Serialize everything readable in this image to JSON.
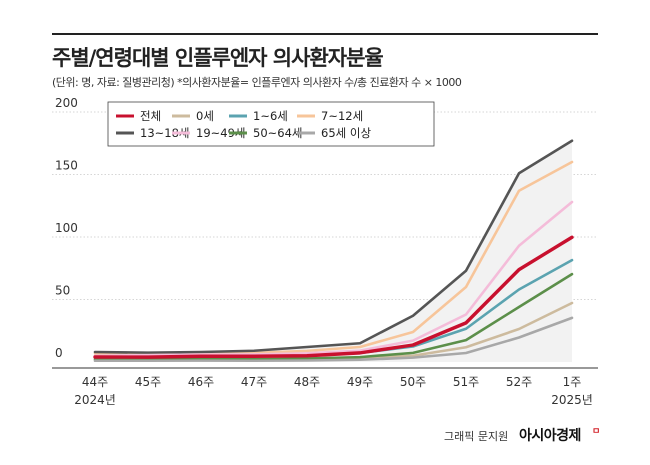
{
  "header": {
    "title": "주별/연령대별 인플루엔자 의사환자분율",
    "subtitle": "(단위: 명, 자료: 질병관리청)  *의사환자분율= 인플루엔자 의사환자 수/총 진료환자 수 × 1000"
  },
  "footer": {
    "credit": "그래픽 문지원",
    "brand": "아시아경제",
    "brand_mark": "ㅁ"
  },
  "chart_data": {
    "type": "line",
    "categories": [
      "44주",
      "45주",
      "46주",
      "47주",
      "48주",
      "49주",
      "50주",
      "51주",
      "52주",
      "1주"
    ],
    "category_sublabels": [
      "2024년",
      "",
      "",
      "",
      "",
      "",
      "",
      "",
      "",
      "2025년"
    ],
    "ylim": [
      0,
      200
    ],
    "yticks": [
      0,
      50,
      100,
      150,
      200
    ],
    "grid": true,
    "legend_placement": "top-left",
    "series": [
      {
        "name": "전체",
        "color": "#c8102e",
        "values": [
          4.0,
          3.9,
          4.6,
          4.6,
          5.0,
          7.3,
          13.6,
          31.3,
          73.9,
          99.8
        ]
      },
      {
        "name": "0세",
        "color": "#cdbb9e",
        "values": [
          3.0,
          2.5,
          3.0,
          2.6,
          3.0,
          3.2,
          5.0,
          11.8,
          26.4,
          47.2
        ]
      },
      {
        "name": "1~6세",
        "color": "#5ba3b0",
        "values": [
          4.5,
          4.1,
          5.0,
          4.9,
          5.6,
          7.2,
          12.4,
          26.6,
          58.0,
          81.5
        ]
      },
      {
        "name": "7~12세",
        "color": "#f7c59a",
        "values": [
          7.0,
          6.3,
          7.1,
          7.3,
          8.9,
          12.0,
          24.0,
          60.0,
          137.0,
          160.0
        ]
      },
      {
        "name": "13~18세",
        "color": "#555555",
        "values": [
          8.0,
          7.5,
          8.0,
          9.0,
          12.0,
          15.0,
          37.0,
          73.0,
          151.0,
          177.0
        ]
      },
      {
        "name": "19~49세",
        "color": "#f4bcd9",
        "values": [
          5.0,
          5.5,
          6.0,
          6.1,
          7.0,
          9.1,
          17.1,
          38.0,
          93.0,
          128.0
        ]
      },
      {
        "name": "50~64세",
        "color": "#5c8f4a",
        "values": [
          2.0,
          2.0,
          2.4,
          2.2,
          2.8,
          3.9,
          7.3,
          17.5,
          44.0,
          70.3
        ]
      },
      {
        "name": "65세 이상",
        "color": "#a8a8a8",
        "values": [
          1.0,
          1.0,
          1.1,
          1.0,
          1.2,
          1.8,
          3.5,
          7.2,
          19.6,
          35.3
        ]
      }
    ]
  }
}
